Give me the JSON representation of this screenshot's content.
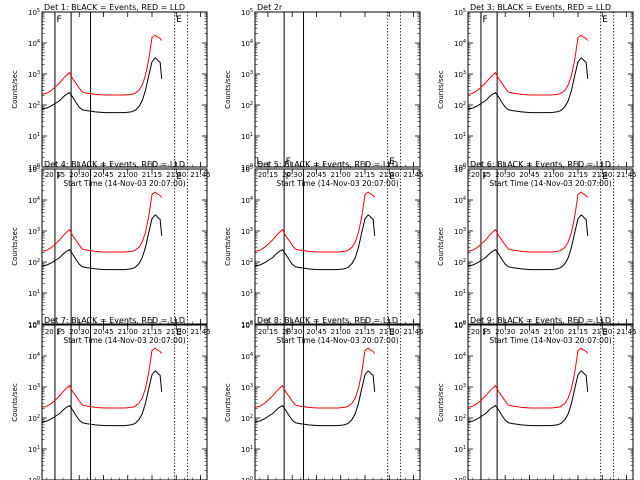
{
  "chart_data": [
    {
      "type": "line",
      "title": "Det 1: BLACK = Events, RED = LLD",
      "xlabel": "Start Time (14-Nov-03 20:07:00)",
      "ylabel": "Counts/sec",
      "yscale": "log",
      "ylim": [
        1,
        100000
      ],
      "xlim": [
        "20:07",
        "21:49"
      ],
      "has_data": true,
      "series": [
        {
          "name": "Events",
          "color": "#000000"
        },
        {
          "name": "LLD",
          "color": "#ff0000"
        }
      ],
      "markers": [
        {
          "label": "F",
          "time": "20:15"
        },
        {
          "label": "",
          "time": "20:25"
        },
        {
          "label": "",
          "time": "20:37"
        },
        {
          "label": "E",
          "time": "21:29"
        },
        {
          "label": "",
          "time": "21:37"
        }
      ]
    },
    {
      "type": "line",
      "title": "Det 2r",
      "xlabel": "Start Time (14-Nov-03 20:07:00)",
      "ylabel": "Counts/sec",
      "yscale": "log",
      "ylim": [
        1,
        100000
      ],
      "xlim": [
        "20:07",
        "21:49"
      ],
      "has_data": false,
      "series": [],
      "markers": [
        {
          "label": "L",
          "time": "20:07"
        },
        {
          "label": "F",
          "time": "20:25"
        },
        {
          "label": "",
          "time": "20:37"
        },
        {
          "label": "E",
          "time": "21:29"
        },
        {
          "label": "",
          "time": "21:37"
        }
      ]
    },
    {
      "type": "line",
      "title": "Det 3: BLACK = Events, RED = LLD",
      "xlabel": "Start Time (14-Nov-03 20:07:00)",
      "ylabel": "Counts/sec",
      "yscale": "log",
      "ylim": [
        1,
        100000
      ],
      "xlim": [
        "20:07",
        "21:49"
      ],
      "has_data": true,
      "series": [
        {
          "name": "Events",
          "color": "#000000"
        },
        {
          "name": "LLD",
          "color": "#ff0000"
        }
      ],
      "markers": [
        {
          "label": "F",
          "time": "20:15"
        },
        {
          "label": "",
          "time": "20:25"
        },
        {
          "label": "E",
          "time": "21:29"
        },
        {
          "label": "",
          "time": "21:37"
        }
      ]
    },
    {
      "type": "line",
      "title": "Det 4: BLACK = Events, RED = LLD",
      "xlabel": "Start Time (14-Nov-03 20:07:00)",
      "ylabel": "Counts/sec",
      "yscale": "log",
      "ylim": [
        1,
        100000
      ],
      "xlim": [
        "20:07",
        "21:49"
      ],
      "has_data": true,
      "series": [
        {
          "name": "Events",
          "color": "#000000"
        },
        {
          "name": "LLD",
          "color": "#ff0000"
        }
      ],
      "markers": [
        {
          "label": "F",
          "time": "20:15"
        },
        {
          "label": "",
          "time": "20:25"
        },
        {
          "label": "",
          "time": "20:37"
        },
        {
          "label": "E",
          "time": "21:29"
        },
        {
          "label": "",
          "time": "21:37"
        }
      ]
    },
    {
      "type": "line",
      "title": "Det 5: BLACK = Events, RED = LLD",
      "xlabel": "Start Time (14-Nov-03 20:07:00)",
      "ylabel": "Counts/sec",
      "yscale": "log",
      "ylim": [
        1,
        100000
      ],
      "xlim": [
        "20:07",
        "21:49"
      ],
      "has_data": true,
      "series": [
        {
          "name": "Events",
          "color": "#000000"
        },
        {
          "name": "LLD",
          "color": "#ff0000"
        }
      ],
      "markers": [
        {
          "label": "F",
          "time": "20:25"
        },
        {
          "label": "",
          "time": "20:37"
        },
        {
          "label": "E",
          "time": "21:29"
        },
        {
          "label": "",
          "time": "21:37"
        }
      ]
    },
    {
      "type": "line",
      "title": "Det 6: BLACK = Events, RED = LLD",
      "xlabel": "Start Time (14-Nov-03 20:07:00)",
      "ylabel": "Counts/sec",
      "yscale": "log",
      "ylim": [
        1,
        100000
      ],
      "xlim": [
        "20:07",
        "21:49"
      ],
      "has_data": true,
      "series": [
        {
          "name": "Events",
          "color": "#000000"
        },
        {
          "name": "LLD",
          "color": "#ff0000"
        }
      ],
      "markers": [
        {
          "label": "F",
          "time": "20:15"
        },
        {
          "label": "",
          "time": "20:25"
        },
        {
          "label": "E",
          "time": "21:29"
        },
        {
          "label": "",
          "time": "21:37"
        }
      ]
    },
    {
      "type": "line",
      "title": "Det 7: BLACK = Events, RED = LLD",
      "xlabel": "Start Time (14-Nov-03 20:07:00)",
      "ylabel": "Counts/sec",
      "yscale": "log",
      "ylim": [
        1,
        100000
      ],
      "xlim": [
        "20:07",
        "21:49"
      ],
      "has_data": true,
      "series": [
        {
          "name": "Events",
          "color": "#000000"
        },
        {
          "name": "LLD",
          "color": "#ff0000"
        }
      ],
      "markers": [
        {
          "label": "F",
          "time": "20:15"
        },
        {
          "label": "",
          "time": "20:25"
        },
        {
          "label": "",
          "time": "20:37"
        },
        {
          "label": "E",
          "time": "21:29"
        },
        {
          "label": "",
          "time": "21:37"
        }
      ]
    },
    {
      "type": "line",
      "title": "Det 8: BLACK = Events, RED = LLD",
      "xlabel": "Start Time (14-Nov-03 20:07:00)",
      "ylabel": "Counts/sec",
      "yscale": "log",
      "ylim": [
        1,
        100000
      ],
      "xlim": [
        "20:07",
        "21:49"
      ],
      "has_data": true,
      "series": [
        {
          "name": "Events",
          "color": "#000000"
        },
        {
          "name": "LLD",
          "color": "#ff0000"
        }
      ],
      "markers": [
        {
          "label": "F",
          "time": "20:25"
        },
        {
          "label": "",
          "time": "20:37"
        },
        {
          "label": "E",
          "time": "21:29"
        },
        {
          "label": "",
          "time": "21:37"
        }
      ]
    },
    {
      "type": "line",
      "title": "Det 9: BLACK = Events, RED = LLD",
      "xlabel": "Start Time (14-Nov-03 20:07:00)",
      "ylabel": "Counts/sec",
      "yscale": "log",
      "ylim": [
        1,
        100000
      ],
      "xlim": [
        "20:07",
        "21:49"
      ],
      "has_data": true,
      "series": [
        {
          "name": "Events",
          "color": "#000000"
        },
        {
          "name": "LLD",
          "color": "#ff0000"
        }
      ],
      "markers": [
        {
          "label": "F",
          "time": "20:15"
        },
        {
          "label": "",
          "time": "20:25"
        },
        {
          "label": "E",
          "time": "21:29"
        },
        {
          "label": "",
          "time": "21:37"
        }
      ]
    }
  ],
  "x_tick_labels": [
    "20:15",
    "20:30",
    "20:45",
    "21:00",
    "21:15",
    "21:30",
    "21:45"
  ],
  "y_tick_exponents": [
    "0",
    "1",
    "2",
    "3",
    "4",
    "5"
  ],
  "y_tick_base": "10",
  "profile": {
    "times": [
      "20:07",
      "20:10",
      "20:13",
      "20:16",
      "20:18",
      "20:20",
      "20:22",
      "20:24",
      "20:26",
      "20:28",
      "20:30",
      "20:32",
      "20:35",
      "20:38",
      "20:40",
      "20:43",
      "20:46",
      "20:50",
      "20:54",
      "20:58",
      "21:00",
      "21:02",
      "21:04",
      "21:05",
      "21:07",
      "21:09",
      "21:11",
      "21:13",
      "21:15",
      "21:17",
      "21:18",
      "21:19",
      "21:20",
      "21:21"
    ],
    "lld": [
      220,
      240,
      300,
      420,
      520,
      700,
      900,
      1100,
      700,
      500,
      350,
      260,
      240,
      230,
      220,
      215,
      210,
      210,
      210,
      210,
      215,
      220,
      230,
      250,
      300,
      450,
      900,
      3000,
      15000,
      18000,
      16000,
      15000,
      14000,
      12000
    ],
    "events": [
      75,
      80,
      95,
      120,
      140,
      180,
      220,
      250,
      180,
      120,
      85,
      70,
      65,
      62,
      60,
      58,
      57,
      57,
      57,
      57,
      58,
      60,
      65,
      70,
      90,
      140,
      300,
      900,
      2500,
      3300,
      3000,
      2600,
      2400,
      700
    ]
  }
}
